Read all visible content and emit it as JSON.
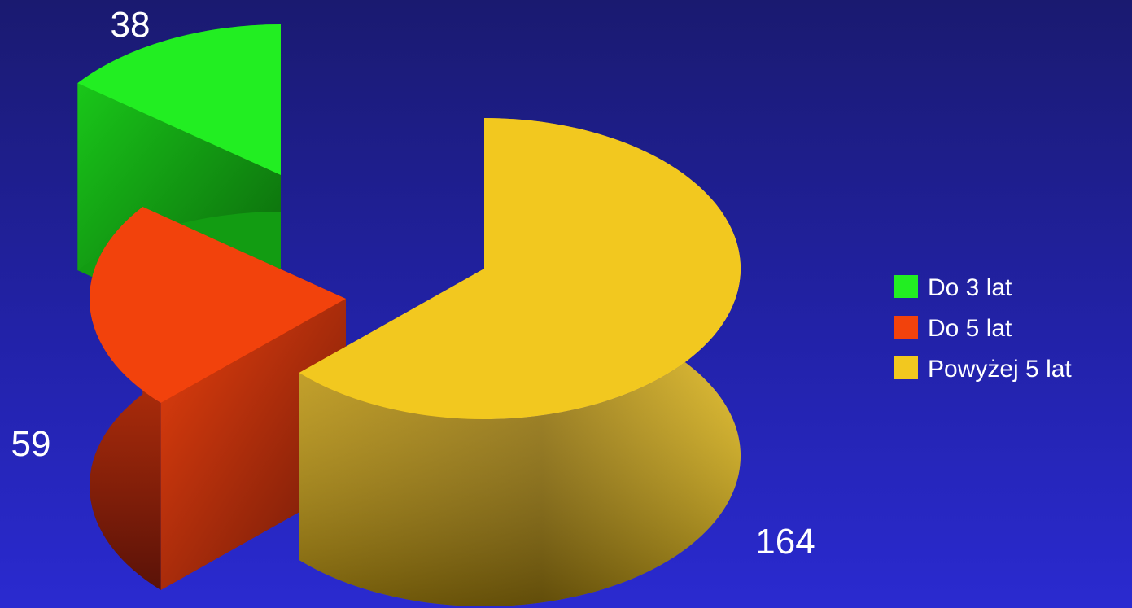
{
  "chart_data": {
    "type": "pie",
    "style": "3d-exploded",
    "categories": [
      "Do 3 lat",
      "Do 5 lat",
      "Powyżej 5 lat"
    ],
    "values": [
      38,
      59,
      164
    ],
    "colors": [
      "#22ee22",
      "#f2420c",
      "#f2c81f"
    ],
    "data_labels": [
      "38",
      "59",
      "164"
    ],
    "legend": {
      "position": "right",
      "entries": [
        "Do 3 lat",
        "Do 5 lat",
        "Powyżej 5 lat"
      ]
    }
  }
}
